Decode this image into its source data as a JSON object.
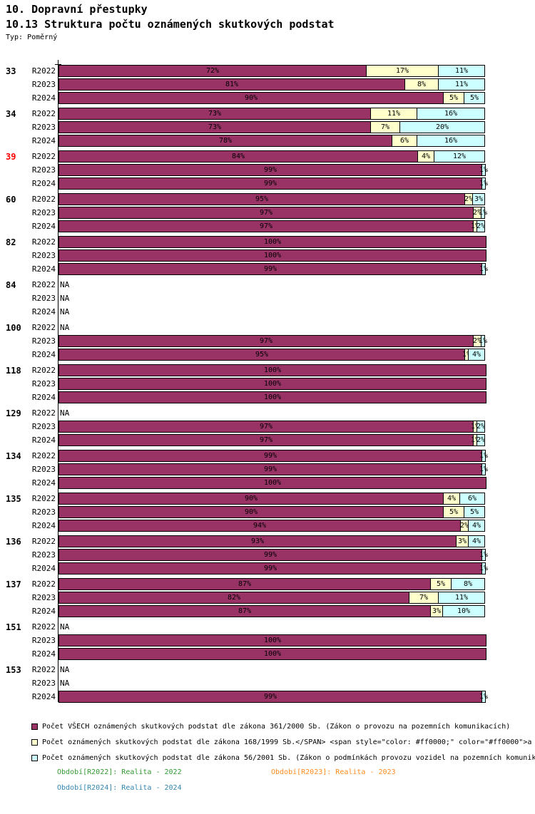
{
  "header": {
    "title": "10. Dopravní přestupky",
    "subtitle": "10.13 Struktura počtu oznámených skutkových podstat",
    "type_label": "Typ: Poměrný"
  },
  "chart_data": {
    "type": "bar",
    "orientation": "horizontal",
    "stacked": true,
    "xlim": [
      0,
      100
    ],
    "value_suffix": "%",
    "na_label": "NA",
    "legend_position": "bottom",
    "series": [
      {
        "key": "zakon-361-2000",
        "name": "Počet VŠECH oznámených skutkových podstat dle zákona 361/2000 Sb.",
        "color": "#993366"
      },
      {
        "key": "zakon-168-1999",
        "name": "Počet oznámených skutkových podstat dle zákona 168/1999 Sb.",
        "color": "#FFFFCC"
      },
      {
        "key": "zakon-56-2001",
        "name": "Počet oznámených skutkových podstat dle zákona 56/2001 Sb.",
        "color": "#CCFFFF"
      }
    ],
    "groups": [
      {
        "label": "33",
        "label_color": "#000000",
        "rows": [
          {
            "period": "R2022",
            "values": [
              72,
              17,
              11
            ]
          },
          {
            "period": "R2023",
            "values": [
              81,
              8,
              11
            ]
          },
          {
            "period": "R2024",
            "values": [
              90,
              5,
              5
            ]
          }
        ]
      },
      {
        "label": "34",
        "label_color": "#000000",
        "rows": [
          {
            "period": "R2022",
            "values": [
              73,
              11,
              16
            ]
          },
          {
            "period": "R2023",
            "values": [
              73,
              7,
              20
            ]
          },
          {
            "period": "R2024",
            "values": [
              78,
              6,
              16
            ]
          }
        ]
      },
      {
        "label": "39",
        "label_color": "#FF0000",
        "rows": [
          {
            "period": "R2022",
            "values": [
              84,
              4,
              12
            ]
          },
          {
            "period": "R2023",
            "values": [
              99,
              0,
              1
            ]
          },
          {
            "period": "R2024",
            "values": [
              99,
              0,
              1
            ]
          }
        ]
      },
      {
        "label": "60",
        "label_color": "#000000",
        "rows": [
          {
            "period": "R2022",
            "values": [
              95,
              2,
              3
            ]
          },
          {
            "period": "R2023",
            "values": [
              97,
              2,
              1
            ]
          },
          {
            "period": "R2024",
            "values": [
              97,
              1,
              2
            ]
          }
        ]
      },
      {
        "label": "82",
        "label_color": "#000000",
        "rows": [
          {
            "period": "R2022",
            "values": [
              100,
              0,
              0
            ]
          },
          {
            "period": "R2023",
            "values": [
              100,
              0,
              0
            ]
          },
          {
            "period": "R2024",
            "values": [
              99,
              0,
              1
            ]
          }
        ]
      },
      {
        "label": "84",
        "label_color": "#000000",
        "rows": [
          {
            "period": "R2022",
            "na": true
          },
          {
            "period": "R2023",
            "na": true
          },
          {
            "period": "R2024",
            "na": true
          }
        ]
      },
      {
        "label": "100",
        "label_color": "#000000",
        "rows": [
          {
            "period": "R2022",
            "na": true
          },
          {
            "period": "R2023",
            "values": [
              97,
              2,
              1
            ]
          },
          {
            "period": "R2024",
            "values": [
              95,
              1,
              4
            ]
          }
        ]
      },
      {
        "label": "118",
        "label_color": "#000000",
        "rows": [
          {
            "period": "R2022",
            "values": [
              100,
              0,
              0
            ]
          },
          {
            "period": "R2023",
            "values": [
              100,
              0,
              0
            ]
          },
          {
            "period": "R2024",
            "values": [
              100,
              0,
              0
            ]
          }
        ]
      },
      {
        "label": "129",
        "label_color": "#000000",
        "rows": [
          {
            "period": "R2022",
            "na": true
          },
          {
            "period": "R2023",
            "values": [
              97,
              1,
              2
            ]
          },
          {
            "period": "R2024",
            "values": [
              97,
              1,
              2
            ]
          }
        ]
      },
      {
        "label": "134",
        "label_color": "#000000",
        "rows": [
          {
            "period": "R2022",
            "values": [
              99,
              0,
              1
            ]
          },
          {
            "period": "R2023",
            "values": [
              99,
              0,
              1
            ]
          },
          {
            "period": "R2024",
            "values": [
              100,
              0,
              0
            ]
          }
        ]
      },
      {
        "label": "135",
        "label_color": "#000000",
        "rows": [
          {
            "period": "R2022",
            "values": [
              90,
              4,
              6
            ]
          },
          {
            "period": "R2023",
            "values": [
              90,
              5,
              5
            ]
          },
          {
            "period": "R2024",
            "values": [
              94,
              2,
              4
            ]
          }
        ]
      },
      {
        "label": "136",
        "label_color": "#000000",
        "rows": [
          {
            "period": "R2022",
            "values": [
              93,
              3,
              4
            ]
          },
          {
            "period": "R2023",
            "values": [
              99,
              0,
              1
            ]
          },
          {
            "period": "R2024",
            "values": [
              99,
              0,
              1
            ]
          }
        ]
      },
      {
        "label": "137",
        "label_color": "#000000",
        "rows": [
          {
            "period": "R2022",
            "values": [
              87,
              5,
              8
            ]
          },
          {
            "period": "R2023",
            "values": [
              82,
              7,
              11
            ]
          },
          {
            "period": "R2024",
            "values": [
              87,
              3,
              10
            ]
          }
        ]
      },
      {
        "label": "151",
        "label_color": "#000000",
        "rows": [
          {
            "period": "R2022",
            "na": true
          },
          {
            "period": "R2023",
            "values": [
              100,
              0,
              0
            ]
          },
          {
            "period": "R2024",
            "values": [
              100,
              0,
              0
            ]
          }
        ]
      },
      {
        "label": "153",
        "label_color": "#000000",
        "rows": [
          {
            "period": "R2022",
            "na": true
          },
          {
            "period": "R2023",
            "na": true
          },
          {
            "period": "R2024",
            "values": [
              99,
              0,
              1
            ]
          }
        ]
      }
    ]
  },
  "legend": {
    "items": [
      {
        "color": "#993366",
        "text": "Počet VŠECH oznámených skutkových podstat dle zákona 361/2000 Sb. (Zákon o provozu na pozemních komunikacích)"
      },
      {
        "color": "#FFFFCC",
        "text": "Počet oznámených skutkových podstat dle zákona 168/1999 Sb.</SPAN> <span style=\"color: #ff0000;\" color=\"#ff0000\">a"
      },
      {
        "color": "#CCFFFF",
        "text": "Počet oznámených skutkových podstat dle zákona 56/2001 Sb. (Zákon o podmínkách provozu vozidel na pozemních komunik"
      }
    ]
  },
  "footnotes": [
    {
      "text": "Období[R2022]: Realita - 2022",
      "color": "#339933"
    },
    {
      "text": "Období[R2023]: Realita - 2023",
      "color": "#FF8C21"
    },
    {
      "text": "Období[R2024]: Realita - 2024",
      "color": "#3385AD"
    }
  ]
}
